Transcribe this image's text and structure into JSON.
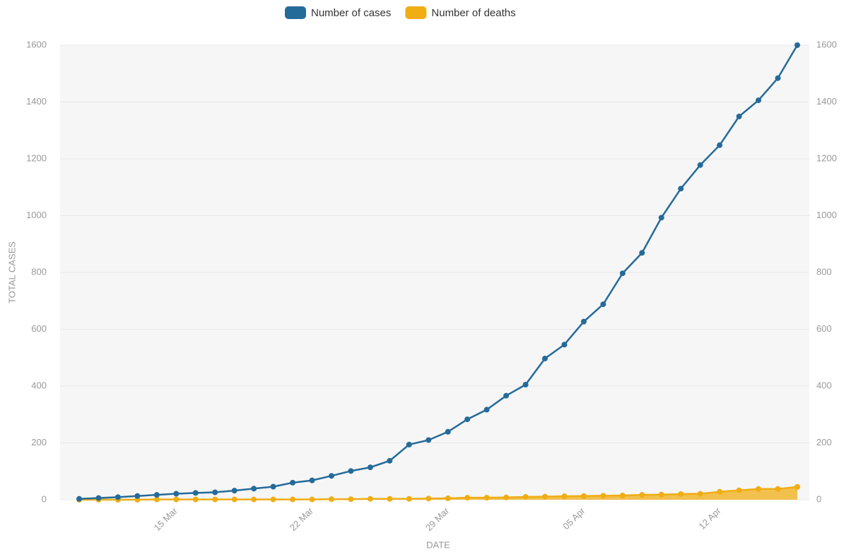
{
  "chart_data": {
    "type": "line",
    "categories": [
      null,
      null,
      null,
      null,
      null,
      "15 Mar",
      null,
      null,
      null,
      null,
      null,
      null,
      "22 Mar",
      null,
      null,
      null,
      null,
      null,
      null,
      "29 Mar",
      null,
      null,
      null,
      null,
      null,
      null,
      "05 Apr",
      null,
      null,
      null,
      null,
      null,
      null,
      "12 Apr",
      null,
      null,
      null,
      null
    ],
    "series": [
      {
        "name": "Number of cases",
        "color": "#256b99",
        "values": [
          3,
          6,
          9,
          13,
          17,
          21,
          24,
          26,
          32,
          39,
          46,
          60,
          68,
          84,
          101,
          114,
          137,
          194,
          210,
          239,
          283,
          317,
          366,
          405,
          497,
          546,
          627,
          688,
          797,
          869,
          993,
          1095,
          1178,
          1248,
          1349,
          1406,
          1484,
          1600
        ]
      },
      {
        "name": "Number of deaths",
        "color": "#f0ad14",
        "area": true,
        "values": [
          0,
          0,
          0,
          0,
          1,
          1,
          1,
          1,
          1,
          1,
          1,
          1,
          1,
          2,
          2,
          3,
          3,
          3,
          4,
          5,
          7,
          7,
          8,
          10,
          11,
          12,
          13,
          14,
          15,
          17,
          18,
          20,
          21,
          28,
          33,
          38,
          38,
          45
        ]
      }
    ],
    "xlabel": "DATE",
    "ylabel": "TOTAL CASES",
    "ylim": [
      0,
      1600
    ],
    "yticks": [
      0,
      200,
      400,
      600,
      800,
      1000,
      1200,
      1400,
      1600
    ],
    "y2lim": [
      0,
      1600
    ],
    "y2ticks": [
      0,
      200,
      400,
      600,
      800,
      1000,
      1200,
      1400,
      1600
    ],
    "grid": true,
    "legend": "top"
  }
}
